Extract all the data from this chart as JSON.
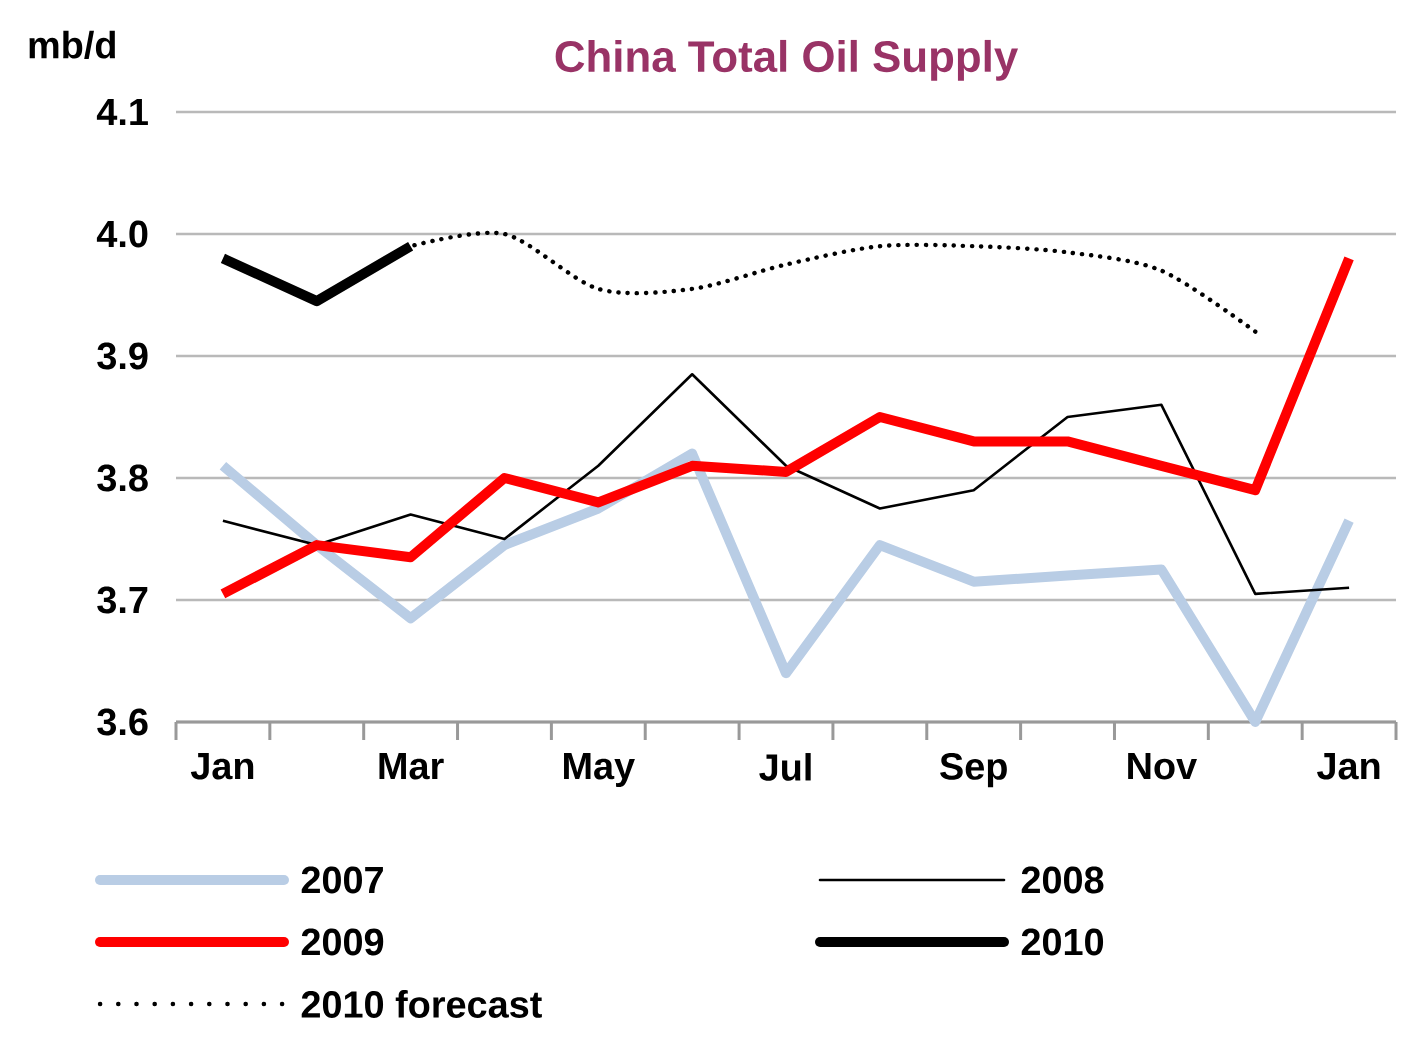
{
  "chart_data": {
    "type": "line",
    "title": "China Total Oil Supply",
    "ylabel": "mb/d",
    "categories": [
      "Jan",
      null,
      "Mar",
      null,
      "May",
      null,
      "Jul",
      null,
      "Sep",
      null,
      "Nov",
      null,
      "Jan"
    ],
    "series": [
      {
        "name": "2007",
        "color": "#b9cde5",
        "values": [
          3.81,
          3.745,
          3.685,
          3.745,
          3.775,
          3.82,
          3.64,
          3.745,
          3.715,
          3.72,
          3.725,
          3.6,
          3.765
        ]
      },
      {
        "name": "2008",
        "color": "#000000",
        "values": [
          3.765,
          3.745,
          3.77,
          3.75,
          3.81,
          3.885,
          3.81,
          3.775,
          3.79,
          3.85,
          3.86,
          3.705,
          3.71
        ]
      },
      {
        "name": "2009",
        "color": "#ff0000",
        "values": [
          3.705,
          3.745,
          3.735,
          3.8,
          3.78,
          3.81,
          3.805,
          3.85,
          3.83,
          3.83,
          3.81,
          3.79,
          3.98
        ]
      },
      {
        "name": "2010",
        "color": "#000000",
        "values": [
          3.98,
          3.945,
          3.99,
          null,
          null,
          null,
          null,
          null,
          null,
          null,
          null,
          null,
          null
        ]
      },
      {
        "name": "2010 forecast",
        "color": "#000000",
        "line_style": "dotted",
        "values": [
          null,
          null,
          3.99,
          4.0,
          3.955,
          3.955,
          3.975,
          3.99,
          3.99,
          3.985,
          3.97,
          3.92,
          null
        ]
      }
    ],
    "ylim": [
      3.6,
      4.1
    ],
    "yticks": [
      3.6,
      3.7,
      3.8,
      3.9,
      {
        "value": 4.0,
        "label": "4.0"
      },
      4.1
    ],
    "grid": "y",
    "legend": "bottom"
  }
}
